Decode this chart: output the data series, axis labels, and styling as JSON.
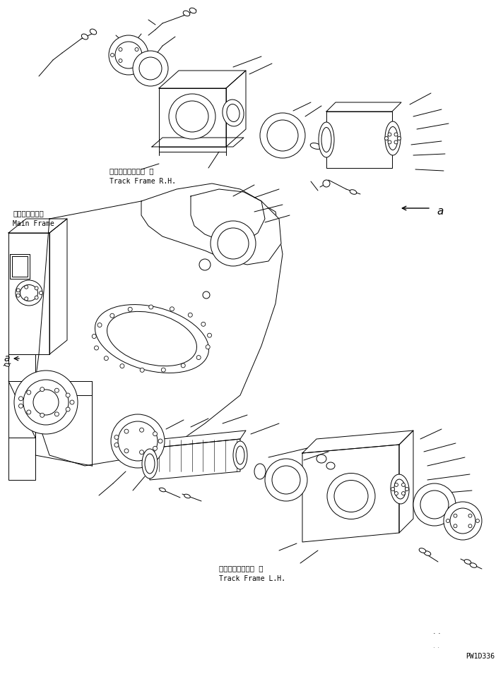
{
  "bg_color": "#ffffff",
  "line_color": "#000000",
  "lw": 0.7,
  "fig_width": 7.12,
  "fig_height": 9.55,
  "labels": {
    "track_frame_rh_jp": "トラックフレーム 右",
    "track_frame_rh_en": "Track Frame R.H.",
    "track_frame_lh_jp": "トラックフレーム 左",
    "track_frame_lh_en": "Track Frame L.H.",
    "main_frame_jp": "メインフレーム",
    "main_frame_en": "Main Frame",
    "part_code": "PW1D336",
    "label_a": "a"
  }
}
